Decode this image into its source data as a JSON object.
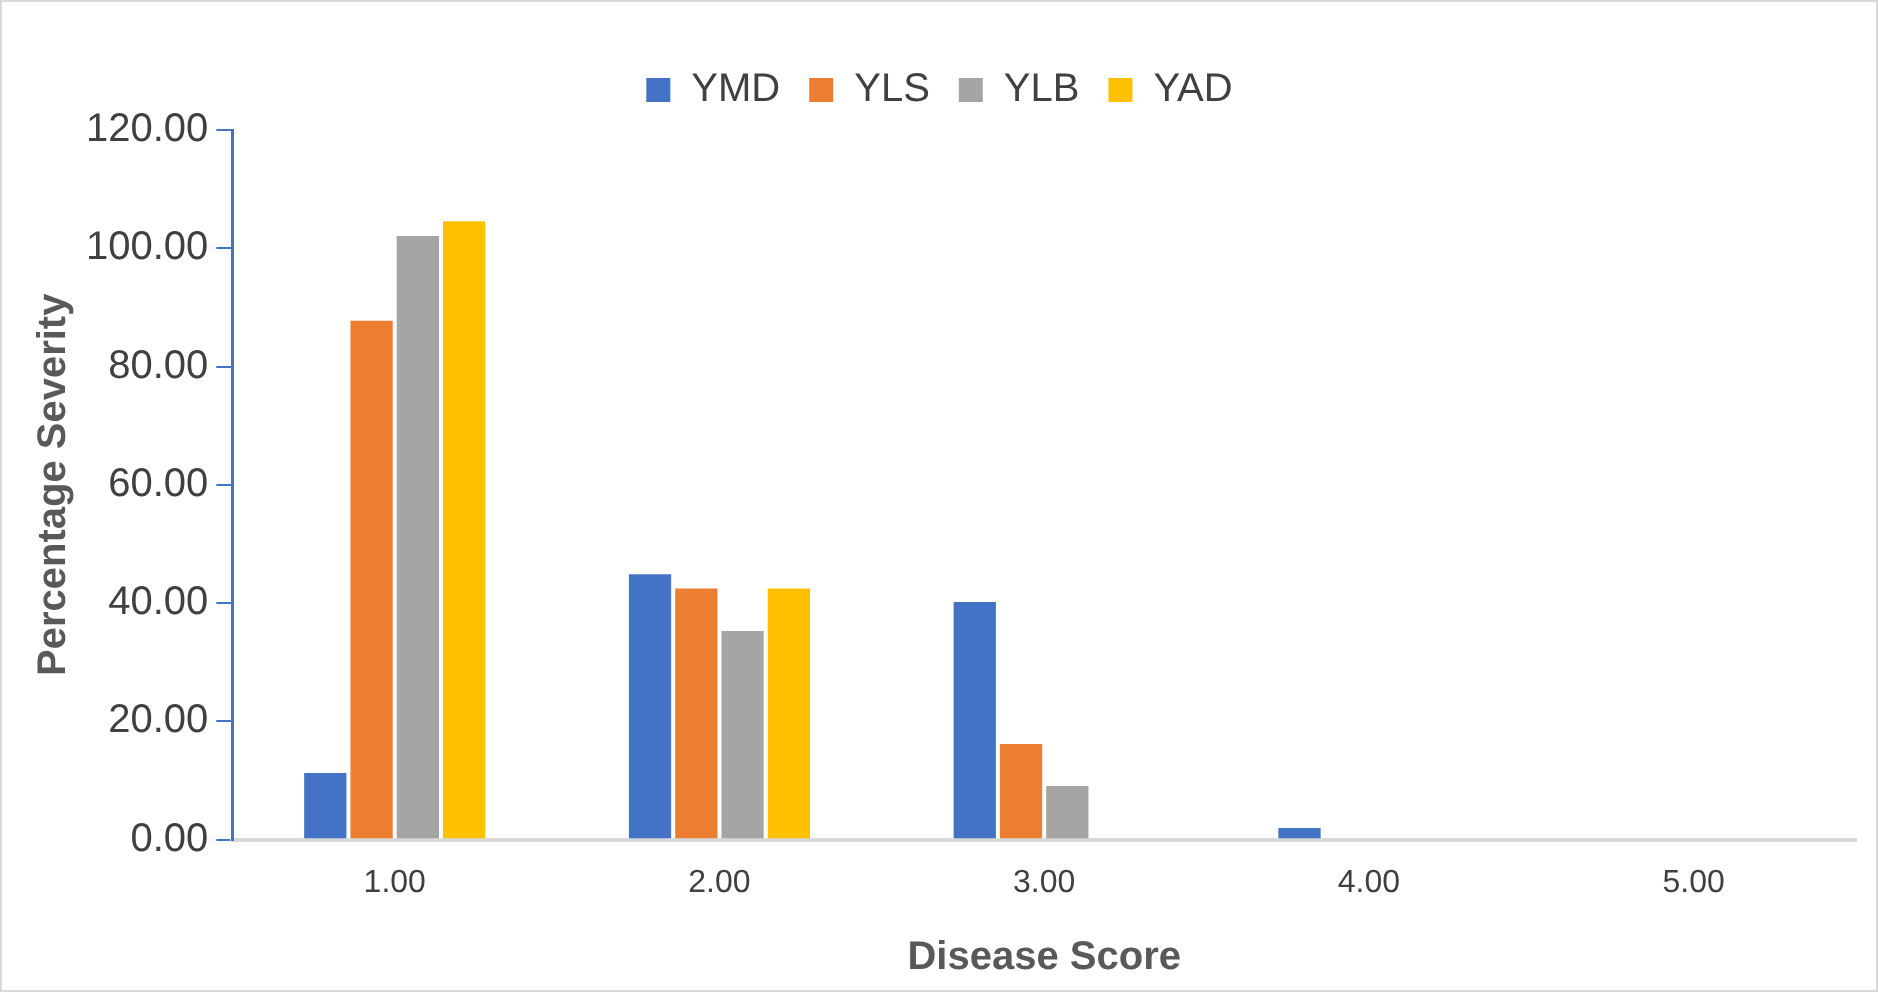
{
  "chart_data": {
    "type": "bar",
    "xlabel": "Disease Score",
    "ylabel": "Percentage Severity",
    "categories": [
      "1.00",
      "2.00",
      "3.00",
      "4.00",
      "5.00"
    ],
    "series": [
      {
        "name": "YMD",
        "color": "#4472c4",
        "values": [
          11.6,
          45.2,
          40.5,
          2.3,
          0
        ]
      },
      {
        "name": "YLS",
        "color": "#ed7d31",
        "values": [
          88.1,
          42.8,
          16.5,
          0,
          0
        ]
      },
      {
        "name": "YLB",
        "color": "#a5a5a5",
        "values": [
          102.4,
          35.6,
          9.4,
          0,
          0
        ]
      },
      {
        "name": "YAD",
        "color": "#ffc000",
        "values": [
          104.9,
          42.8,
          0,
          0,
          0
        ]
      }
    ],
    "ylim": [
      0,
      120
    ],
    "yticks": [
      {
        "value": 0,
        "label": "0.00"
      },
      {
        "value": 20,
        "label": "20.00"
      },
      {
        "value": 40,
        "label": "40.00"
      },
      {
        "value": 60,
        "label": "60.00"
      },
      {
        "value": 80,
        "label": "80.00"
      },
      {
        "value": 100,
        "label": "100.00"
      },
      {
        "value": 120,
        "label": "120.00"
      }
    ],
    "grid": false,
    "legend": "top"
  }
}
